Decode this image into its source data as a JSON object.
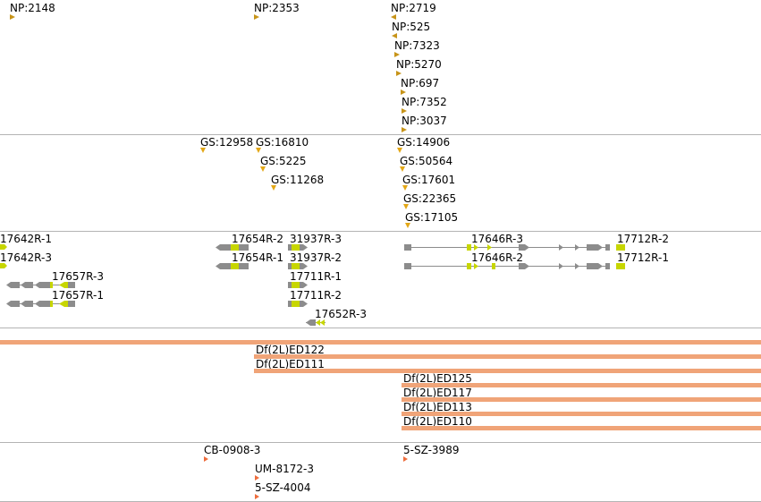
{
  "colors": {
    "divider": "#b4b4b4",
    "np_marker": "#c79419",
    "gs_marker": "#e3a716",
    "gene": "#8c8c8c",
    "utr": "#c7d600",
    "deficiency": "#f0a478",
    "insertion": "#ee6d3d"
  },
  "tracks": {
    "np": [
      {
        "label": "NP:2148",
        "dir": "r"
      },
      {
        "label": "NP:2353",
        "dir": "r"
      },
      {
        "label": "NP:2719",
        "dir": "l"
      },
      {
        "label": "NP:525",
        "dir": "l"
      },
      {
        "label": "NP:7323",
        "dir": "r"
      },
      {
        "label": "NP:5270",
        "dir": "r"
      },
      {
        "label": "NP:697",
        "dir": "r"
      },
      {
        "label": "NP:7352",
        "dir": "r"
      },
      {
        "label": "NP:3037",
        "dir": "r"
      }
    ],
    "gs": [
      {
        "label": "GS:12958",
        "dir": "d"
      },
      {
        "label": "GS:16810",
        "dir": "d"
      },
      {
        "label": "GS:5225",
        "dir": "d"
      },
      {
        "label": "GS:11268",
        "dir": "d"
      },
      {
        "label": "GS:14906",
        "dir": "d"
      },
      {
        "label": "GS:50564",
        "dir": "d"
      },
      {
        "label": "GS:17601",
        "dir": "d"
      },
      {
        "label": "GS:22365",
        "dir": "d"
      },
      {
        "label": "GS:17105",
        "dir": "d"
      }
    ],
    "genes": [
      {
        "label": "17642R-1",
        "strand": "+"
      },
      {
        "label": "17642R-3",
        "strand": "+"
      },
      {
        "label": "17657R-3",
        "strand": "-"
      },
      {
        "label": "17657R-1",
        "strand": "-"
      },
      {
        "label": "17654R-2",
        "strand": "-"
      },
      {
        "label": "17654R-1",
        "strand": "-"
      },
      {
        "label": "31937R-3",
        "strand": "+"
      },
      {
        "label": "31937R-2",
        "strand": "+"
      },
      {
        "label": "17711R-1",
        "strand": "+"
      },
      {
        "label": "17711R-2",
        "strand": "+"
      },
      {
        "label": "17652R-3",
        "strand": "-"
      },
      {
        "label": "17646R-3",
        "strand": "+"
      },
      {
        "label": "17646R-2",
        "strand": "+"
      },
      {
        "label": "17712R-2",
        "strand": "+"
      },
      {
        "label": "17712R-1",
        "strand": "+"
      }
    ],
    "deficiencies": [
      {
        "label": ""
      },
      {
        "label": "Df(2L)ED122"
      },
      {
        "label": "Df(2L)ED111"
      },
      {
        "label": "Df(2L)ED125"
      },
      {
        "label": "Df(2L)ED117"
      },
      {
        "label": "Df(2L)ED113"
      },
      {
        "label": "Df(2L)ED110"
      }
    ],
    "insertions": [
      {
        "label": "CB-0908-3"
      },
      {
        "label": "UM-8172-3"
      },
      {
        "label": "5-SZ-4004"
      },
      {
        "label": "5-SZ-3989"
      }
    ]
  }
}
